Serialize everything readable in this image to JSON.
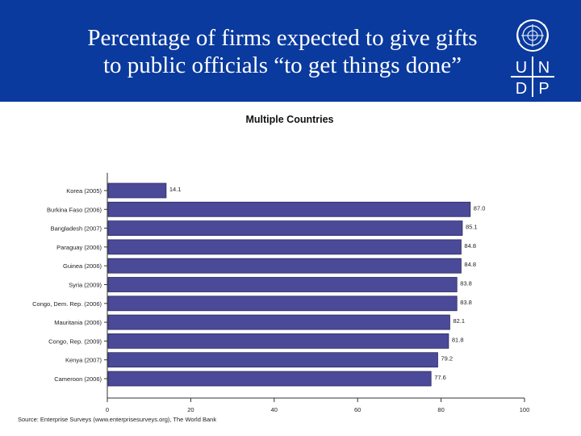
{
  "slide": {
    "title_line1": "Percentage of firms expected to give gifts",
    "title_line2": "to public officials “to get things done”",
    "logo_letters": [
      "U",
      "N",
      "D",
      "P"
    ],
    "header_color": "#0a3a9e"
  },
  "chart_data": {
    "type": "bar",
    "orientation": "horizontal",
    "title": "Multiple Countries",
    "categories": [
      "Korea (2005)",
      "Burkina Faso (2006)",
      "Bangladesh (2007)",
      "Paraguay (2006)",
      "Guinea (2006)",
      "Syria (2009)",
      "Congo, Dem. Rep. (2006)",
      "Mauritania (2006)",
      "Congo, Rep. (2009)",
      "Kenya (2007)",
      "Cameroon (2006)"
    ],
    "values": [
      14.1,
      87.0,
      85.1,
      84.8,
      84.8,
      83.8,
      83.8,
      82.1,
      81.8,
      79.2,
      77.6
    ],
    "value_labels": [
      "14.1",
      "87.0",
      "85.1",
      "84.8",
      "84.8",
      "83.8",
      "83.8",
      "82.1",
      "81.8",
      "79.2",
      "77.6"
    ],
    "xlim": [
      0,
      100
    ],
    "xticks": [
      0,
      20,
      40,
      60,
      80,
      100
    ],
    "xlabel": "",
    "ylabel": "",
    "bar_color": "#4b4a99",
    "source": "Source: Enterprise Surveys (www.enterprisesurveys.org), The World Bank"
  }
}
